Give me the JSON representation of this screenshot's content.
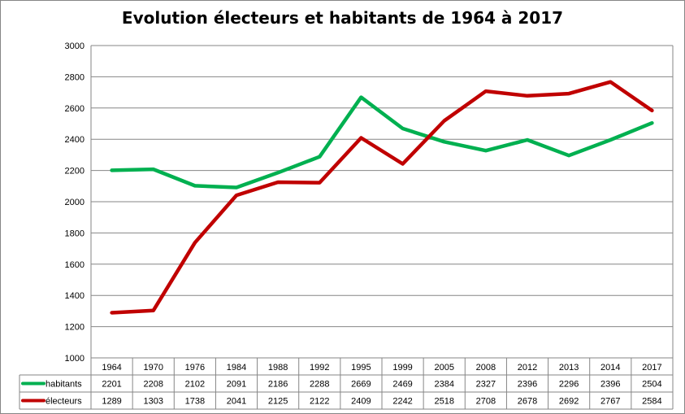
{
  "chart_data": {
    "type": "line",
    "title": "Evolution électeurs et habitants de 1964 à 2017",
    "categories": [
      "1964",
      "1970",
      "1976",
      "1984",
      "1988",
      "1992",
      "1995",
      "1999",
      "2005",
      "2008",
      "2012",
      "2013",
      "2014",
      "2017"
    ],
    "ylim": [
      1000,
      3000
    ],
    "yticks": [
      "1000",
      "1200",
      "1400",
      "1600",
      "1800",
      "2000",
      "2200",
      "2400",
      "2600",
      "2800",
      "3000"
    ],
    "grid": true,
    "legend": "data-table-left",
    "series": [
      {
        "name": "habitants",
        "color": "#00B050",
        "values": [
          2201,
          2208,
          2102,
          2091,
          2186,
          2288,
          2669,
          2469,
          2384,
          2327,
          2396,
          2296,
          2396,
          2504
        ]
      },
      {
        "name": "électeurs",
        "color": "#C00000",
        "values": [
          1289,
          1303,
          1738,
          2041,
          2125,
          2122,
          2409,
          2242,
          2518,
          2708,
          2678,
          2692,
          2767,
          2584
        ]
      }
    ]
  }
}
